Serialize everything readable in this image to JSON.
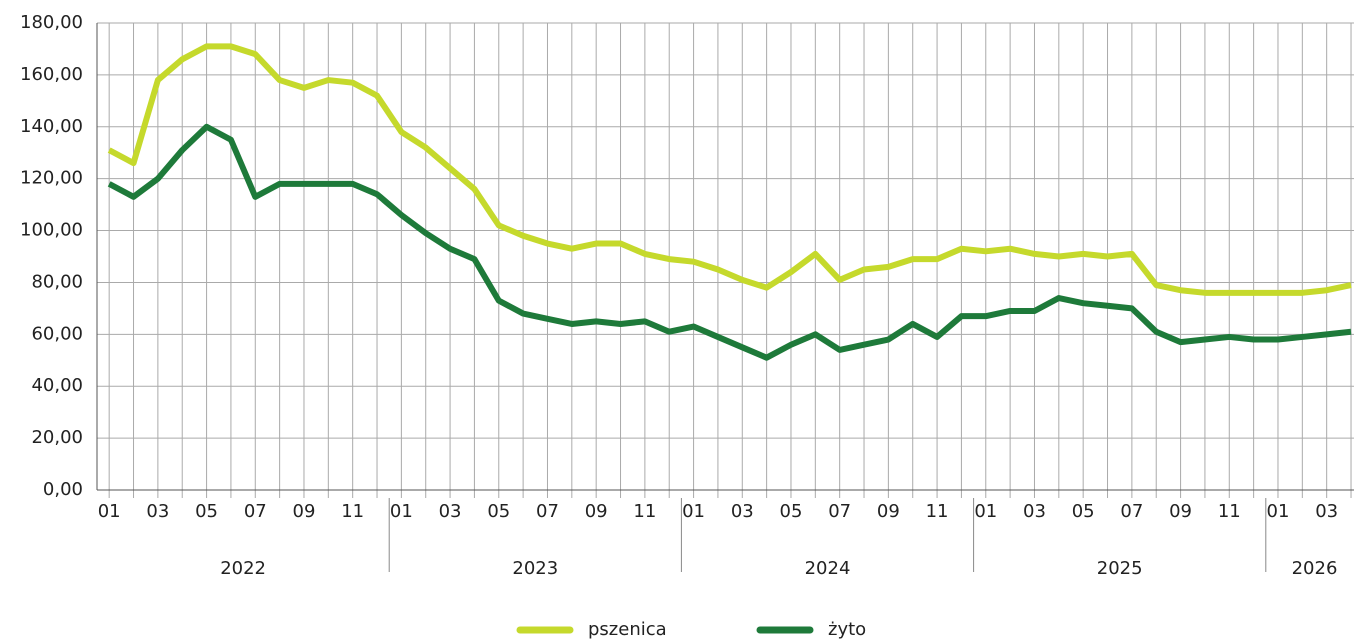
{
  "chart_data": {
    "type": "line",
    "categories": [
      "01",
      null,
      "03",
      null,
      "05",
      null,
      "07",
      null,
      "09",
      null,
      "11",
      null,
      "01",
      null,
      "03",
      null,
      "05",
      null,
      "07",
      null,
      "09",
      null,
      "11",
      null,
      "01",
      null,
      "03",
      null,
      "05",
      null,
      "07",
      null,
      "09",
      null,
      "11",
      null,
      "01",
      null,
      "03",
      null,
      "05",
      null,
      "07",
      null,
      "09",
      null,
      "11",
      null,
      "01",
      null,
      "03",
      null
    ],
    "x_groups": [
      {
        "label": "2022",
        "count": 12
      },
      {
        "label": "2023",
        "count": 12
      },
      {
        "label": "2024",
        "count": 12
      },
      {
        "label": "2025",
        "count": 12
      },
      {
        "label": "2026",
        "count": 4
      }
    ],
    "series": [
      {
        "name": "pszenica",
        "color": "#c5d92c",
        "values": [
          131,
          126,
          158,
          166,
          171,
          171,
          168,
          158,
          155,
          158,
          157,
          152,
          138,
          132,
          124,
          116,
          102,
          98,
          95,
          93,
          95,
          95,
          91,
          89,
          88,
          85,
          81,
          78,
          84,
          91,
          81,
          85,
          86,
          89,
          89,
          93,
          92,
          93,
          91,
          90,
          91,
          90,
          91,
          79,
          77,
          76,
          76,
          76,
          76,
          76,
          77,
          79
        ]
      },
      {
        "name": "żyto",
        "color": "#1e7a3a",
        "values": [
          118,
          113,
          120,
          131,
          140,
          135,
          113,
          118,
          118,
          118,
          118,
          114,
          106,
          99,
          93,
          89,
          73,
          68,
          66,
          64,
          65,
          64,
          65,
          61,
          63,
          59,
          55,
          51,
          56,
          60,
          54,
          56,
          58,
          64,
          59,
          67,
          67,
          69,
          69,
          74,
          72,
          71,
          70,
          61,
          57,
          58,
          59,
          58,
          58,
          59,
          60,
          61
        ]
      }
    ],
    "ylim": [
      0,
      180
    ],
    "yticks": [
      {
        "value": 0,
        "label": "0,00"
      },
      {
        "value": 20,
        "label": "20,00"
      },
      {
        "value": 40,
        "label": "40,00"
      },
      {
        "value": 60,
        "label": "60,00"
      },
      {
        "value": 80,
        "label": "80,00"
      },
      {
        "value": 100,
        "label": "100,00"
      },
      {
        "value": 120,
        "label": "120,00"
      },
      {
        "value": 140,
        "label": "140,00"
      },
      {
        "value": 160,
        "label": "160,00"
      },
      {
        "value": 180,
        "label": "180,00"
      }
    ],
    "grid": true,
    "legend": "bottom"
  }
}
